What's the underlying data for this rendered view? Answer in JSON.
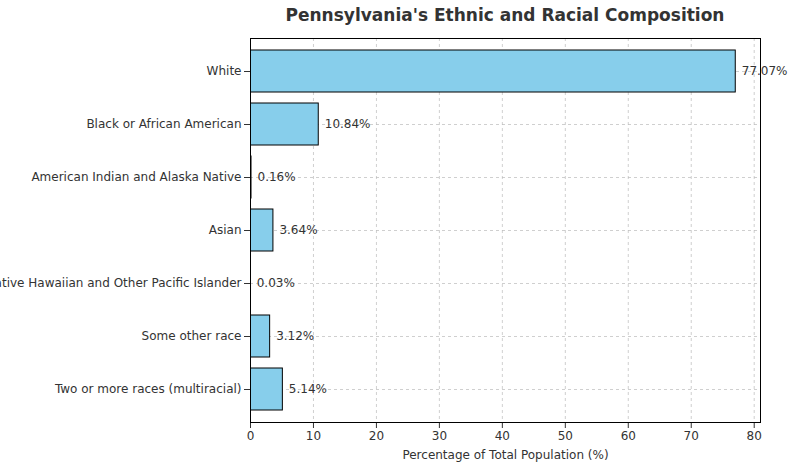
{
  "chart_data": {
    "type": "bar",
    "title": "Pennsylvania's Ethnic and Racial Composition",
    "xlabel": "Percentage of Total Population (%)",
    "orientation": "horizontal",
    "categories": [
      "White",
      "Black or African American",
      "American Indian and Alaska Native",
      "Asian",
      "Native Hawaiian and Other Pacific Islander",
      "Some other race",
      "Two or more races (multiracial)"
    ],
    "values": [
      77.07,
      10.84,
      0.16,
      3.64,
      0.03,
      3.12,
      5.14
    ],
    "value_labels": [
      "77.07%",
      "10.84%",
      "0.16%",
      "3.64%",
      "0.03%",
      "3.12%",
      "5.14%"
    ],
    "color": "#87ceeb",
    "xlim": [
      0,
      81
    ],
    "xticks": [
      0,
      10,
      20,
      30,
      40,
      50,
      60,
      70,
      80
    ],
    "grid": true,
    "data_labels": true
  }
}
